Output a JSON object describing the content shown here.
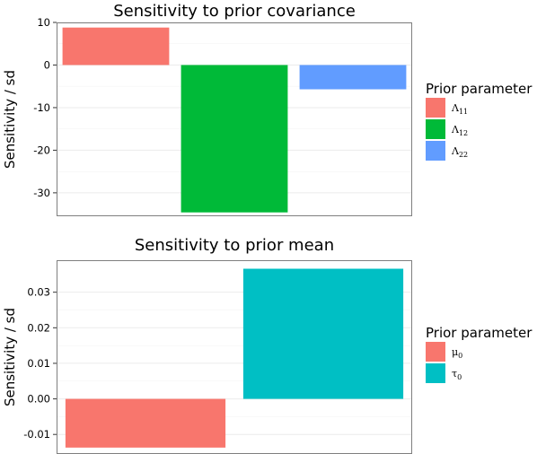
{
  "chart_data": [
    {
      "type": "bar",
      "title": "Sensitivity to prior covariance",
      "xlabel": "",
      "ylabel": "Sensitivity / sd",
      "ylim": [
        -35.5,
        10
      ],
      "yticks": [
        10,
        0,
        -10,
        -20,
        -30
      ],
      "ytick_labels": [
        "10",
        "0",
        "-10",
        "-20",
        "-30"
      ],
      "grid": true,
      "legend_title": "Prior parameter",
      "legend_position": "right",
      "categories": [
        {
          "base": "Λ",
          "sub": "11"
        },
        {
          "base": "Λ",
          "sub": "12"
        },
        {
          "base": "Λ",
          "sub": "22"
        }
      ],
      "values": [
        8.8,
        -34.6,
        -5.7
      ],
      "colors": [
        "#F8766D",
        "#00BA38",
        "#619CFF"
      ]
    },
    {
      "type": "bar",
      "title": "Sensitivity to prior mean",
      "xlabel": "",
      "ylabel": "Sensitivity / sd",
      "ylim": [
        -0.0155,
        0.039
      ],
      "yticks": [
        0.03,
        0.02,
        0.01,
        0.0,
        -0.01
      ],
      "ytick_labels": [
        "0.03",
        "0.02",
        "0.01",
        "0.00",
        "-0.01"
      ],
      "grid": true,
      "legend_title": "Prior parameter",
      "legend_position": "right",
      "categories": [
        {
          "base": "μ",
          "sub": "0"
        },
        {
          "base": "τ",
          "sub": "0"
        }
      ],
      "values": [
        -0.0137,
        0.0366
      ],
      "colors": [
        "#F8766D",
        "#00BFC4"
      ]
    }
  ]
}
